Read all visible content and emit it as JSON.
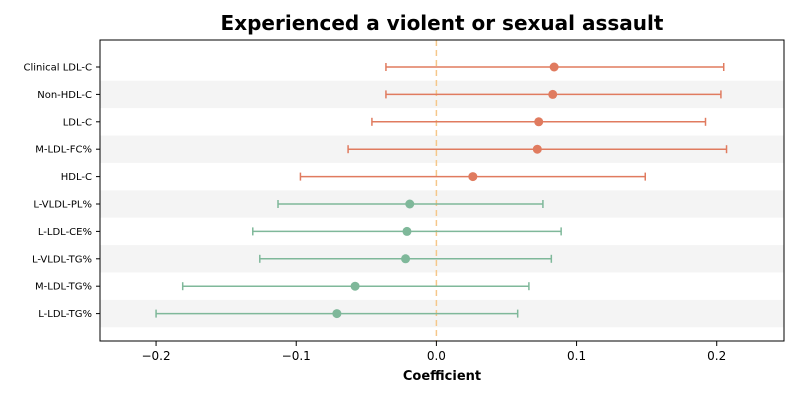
{
  "chart_data": {
    "type": "forest",
    "title": "Experienced a violent or sexual assault",
    "xlabel": "Coefficient",
    "ylabel": "",
    "xlim": [
      -0.24,
      0.248
    ],
    "xticks": [
      {
        "value": -0.2,
        "label": "−0.2"
      },
      {
        "value": -0.1,
        "label": "−0.1"
      },
      {
        "value": 0.0,
        "label": "0.0"
      },
      {
        "value": 0.1,
        "label": "0.1"
      },
      {
        "value": 0.2,
        "label": "0.2"
      }
    ],
    "reference_line": {
      "x": 0,
      "style": "dashed",
      "color": "#f5c78a"
    },
    "colors": {
      "positive": "#e07b5f",
      "negative": "#7fb89a",
      "band": "#f4f4f4"
    },
    "alternate_row_shading": true,
    "grid": false,
    "rows": [
      {
        "label": "Clinical LDL-C",
        "estimate": 0.084,
        "lower": -0.036,
        "upper": 0.205
      },
      {
        "label": "Non-HDL-C",
        "estimate": 0.083,
        "lower": -0.036,
        "upper": 0.203
      },
      {
        "label": "LDL-C",
        "estimate": 0.073,
        "lower": -0.046,
        "upper": 0.192
      },
      {
        "label": "M-LDL-FC%",
        "estimate": 0.072,
        "lower": -0.063,
        "upper": 0.207
      },
      {
        "label": "HDL-C",
        "estimate": 0.026,
        "lower": -0.097,
        "upper": 0.149
      },
      {
        "label": "L-VLDL-PL%",
        "estimate": -0.019,
        "lower": -0.113,
        "upper": 0.076
      },
      {
        "label": "L-LDL-CE%",
        "estimate": -0.021,
        "lower": -0.131,
        "upper": 0.089
      },
      {
        "label": "L-VLDL-TG%",
        "estimate": -0.022,
        "lower": -0.126,
        "upper": 0.082
      },
      {
        "label": "M-LDL-TG%",
        "estimate": -0.058,
        "lower": -0.181,
        "upper": 0.066
      },
      {
        "label": "L-LDL-TG%",
        "estimate": -0.071,
        "lower": -0.2,
        "upper": 0.058
      }
    ]
  }
}
